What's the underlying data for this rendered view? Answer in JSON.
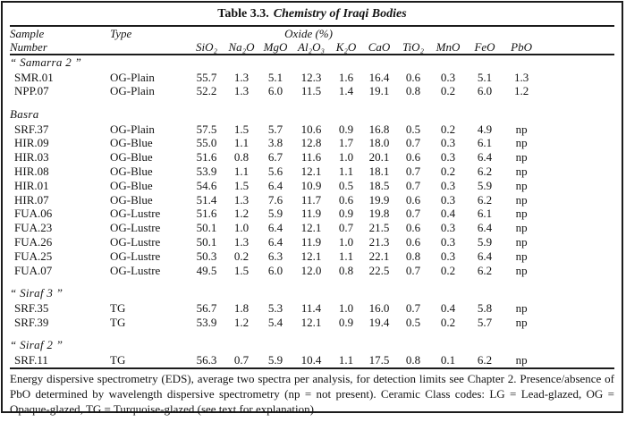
{
  "title": {
    "prefix": "Table 3.3.",
    "italic": "Chemistry of Iraqi Bodies"
  },
  "header": {
    "sample_line1": "Sample",
    "sample_line2": "Number",
    "type": "Type",
    "oxide_group": "Oxide (%)",
    "oxide_columns": [
      "SiO₂",
      "Na₂O",
      "MgO",
      "Al₂O₃",
      "K₂O",
      "CaO",
      "TiO₂",
      "MnO",
      "FeO",
      "PbO"
    ]
  },
  "groups": [
    {
      "label": "“ Samarra 2 ”",
      "rows": [
        {
          "sample": "SMR.01",
          "type": "OG-Plain",
          "values": [
            "55.7",
            "1.3",
            "5.1",
            "12.3",
            "1.6",
            "16.4",
            "0.6",
            "0.3",
            "5.1",
            "1.3"
          ]
        },
        {
          "sample": "NPP.07",
          "type": "OG-Plain",
          "values": [
            "52.2",
            "1.3",
            "6.0",
            "11.5",
            "1.4",
            "19.1",
            "0.8",
            "0.2",
            "6.0",
            "1.2"
          ]
        }
      ]
    },
    {
      "label": "Basra",
      "rows": [
        {
          "sample": "SRF.37",
          "type": "OG-Plain",
          "values": [
            "57.5",
            "1.5",
            "5.7",
            "10.6",
            "0.9",
            "16.8",
            "0.5",
            "0.2",
            "4.9",
            "np"
          ]
        },
        {
          "sample": "HIR.09",
          "type": "OG-Blue",
          "values": [
            "55.0",
            "1.1",
            "3.8",
            "12.8",
            "1.7",
            "18.0",
            "0.7",
            "0.3",
            "6.1",
            "np"
          ]
        },
        {
          "sample": "HIR.03",
          "type": "OG-Blue",
          "values": [
            "51.6",
            "0.8",
            "6.7",
            "11.6",
            "1.0",
            "20.1",
            "0.6",
            "0.3",
            "6.4",
            "np"
          ]
        },
        {
          "sample": "HIR.08",
          "type": "OG-Blue",
          "values": [
            "53.9",
            "1.1",
            "5.6",
            "12.1",
            "1.1",
            "18.1",
            "0.7",
            "0.2",
            "6.2",
            "np"
          ]
        },
        {
          "sample": "HIR.01",
          "type": "OG-Blue",
          "values": [
            "54.6",
            "1.5",
            "6.4",
            "10.9",
            "0.5",
            "18.5",
            "0.7",
            "0.3",
            "5.9",
            "np"
          ]
        },
        {
          "sample": "HIR.07",
          "type": "OG-Blue",
          "values": [
            "51.4",
            "1.3",
            "7.6",
            "11.7",
            "0.6",
            "19.9",
            "0.6",
            "0.3",
            "6.2",
            "np"
          ]
        },
        {
          "sample": "FUA.06",
          "type": "OG-Lustre",
          "values": [
            "51.6",
            "1.2",
            "5.9",
            "11.9",
            "0.9",
            "19.8",
            "0.7",
            "0.4",
            "6.1",
            "np"
          ]
        },
        {
          "sample": "FUA.23",
          "type": "OG-Lustre",
          "values": [
            "50.1",
            "1.0",
            "6.4",
            "12.1",
            "0.7",
            "21.5",
            "0.6",
            "0.3",
            "6.4",
            "np"
          ]
        },
        {
          "sample": "FUA.26",
          "type": "OG-Lustre",
          "values": [
            "50.1",
            "1.3",
            "6.4",
            "11.9",
            "1.0",
            "21.3",
            "0.6",
            "0.3",
            "5.9",
            "np"
          ]
        },
        {
          "sample": "FUA.25",
          "type": "OG-Lustre",
          "values": [
            "50.3",
            "0.2",
            "6.3",
            "12.1",
            "1.1",
            "22.1",
            "0.8",
            "0.3",
            "6.4",
            "np"
          ]
        },
        {
          "sample": "FUA.07",
          "type": "OG-Lustre",
          "values": [
            "49.5",
            "1.5",
            "6.0",
            "12.0",
            "0.8",
            "22.5",
            "0.7",
            "0.2",
            "6.2",
            "np"
          ]
        }
      ]
    },
    {
      "label": "“ Siraf 3 ”",
      "rows": [
        {
          "sample": "SRF.35",
          "type": "TG",
          "values": [
            "56.7",
            "1.8",
            "5.3",
            "11.4",
            "1.0",
            "16.0",
            "0.7",
            "0.4",
            "5.8",
            "np"
          ]
        },
        {
          "sample": "SRF.39",
          "type": "TG",
          "values": [
            "53.9",
            "1.2",
            "5.4",
            "12.1",
            "0.9",
            "19.4",
            "0.5",
            "0.2",
            "5.7",
            "np"
          ]
        }
      ]
    },
    {
      "label": "“ Siraf 2 ”",
      "rows": [
        {
          "sample": "SRF.11",
          "type": "TG",
          "values": [
            "56.3",
            "0.7",
            "5.9",
            "10.4",
            "1.1",
            "17.5",
            "0.8",
            "0.1",
            "6.2",
            "np"
          ]
        }
      ]
    }
  ],
  "footnote": "Energy dispersive spectrometry (EDS), average two spectra per analysis, for detection limits see Chapter 2. Presence/absence of PbO determined by wavelength dispersive spectrometry (np = not present). Ceramic Class codes: LG = Lead-glazed, OG = Opaque-glazed, TG = Turquoise-glazed (see text for explanation)."
}
